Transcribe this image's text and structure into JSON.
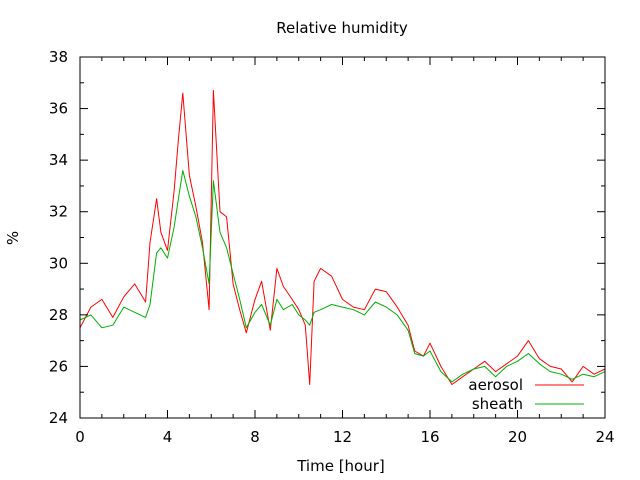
{
  "chart_data": {
    "type": "line",
    "title": "Relative humidity",
    "xlabel": "Time [hour]",
    "ylabel": "%",
    "xlim": [
      0,
      24
    ],
    "ylim": [
      24,
      38
    ],
    "x_ticks": [
      0,
      4,
      8,
      12,
      16,
      20,
      24
    ],
    "y_ticks": [
      24,
      26,
      28,
      30,
      32,
      34,
      36,
      38
    ],
    "grid": false,
    "legend_position": "bottom-right",
    "series": [
      {
        "name": "aerosol",
        "color": "#ff0000",
        "x": [
          0,
          0.5,
          1,
          1.5,
          2,
          2.5,
          3,
          3.2,
          3.5,
          3.7,
          4,
          4.3,
          4.5,
          4.7,
          5,
          5.3,
          5.6,
          5.9,
          6.1,
          6.4,
          6.7,
          7,
          7.3,
          7.6,
          8,
          8.3,
          8.7,
          9,
          9.3,
          9.7,
          10,
          10.3,
          10.5,
          10.7,
          11,
          11.5,
          12,
          12.5,
          13,
          13.5,
          14,
          14.5,
          15,
          15.3,
          15.7,
          16,
          16.5,
          17,
          17.5,
          18,
          18.5,
          19,
          19.5,
          20,
          20.5,
          21,
          21.5,
          22,
          22.5,
          23,
          23.5,
          24
        ],
        "y": [
          27.5,
          28.3,
          28.6,
          27.9,
          28.7,
          29.2,
          28.5,
          30.8,
          32.5,
          31.2,
          30.5,
          32.8,
          34.8,
          36.6,
          33.4,
          32.2,
          30.8,
          28.2,
          36.7,
          32.0,
          31.8,
          29.2,
          28.2,
          27.3,
          28.6,
          29.3,
          27.4,
          29.8,
          29.1,
          28.6,
          28.2,
          27.6,
          25.3,
          29.3,
          29.8,
          29.5,
          28.6,
          28.3,
          28.2,
          29.0,
          28.9,
          28.3,
          27.6,
          26.6,
          26.4,
          26.9,
          26.0,
          25.3,
          25.6,
          25.9,
          26.2,
          25.8,
          26.1,
          26.4,
          27.0,
          26.3,
          26.0,
          25.9,
          25.4,
          26.0,
          25.7,
          25.9
        ]
      },
      {
        "name": "sheath",
        "color": "#00b000",
        "x": [
          0,
          0.5,
          1,
          1.5,
          2,
          2.5,
          3,
          3.2,
          3.5,
          3.7,
          4,
          4.3,
          4.5,
          4.7,
          5,
          5.3,
          5.6,
          5.9,
          6.1,
          6.4,
          6.7,
          7,
          7.3,
          7.6,
          8,
          8.3,
          8.7,
          9,
          9.3,
          9.7,
          10,
          10.3,
          10.5,
          10.7,
          11,
          11.5,
          12,
          12.5,
          13,
          13.5,
          14,
          14.5,
          15,
          15.3,
          15.7,
          16,
          16.5,
          17,
          17.5,
          18,
          18.5,
          19,
          19.5,
          20,
          20.5,
          21,
          21.5,
          22,
          22.5,
          23,
          23.5,
          24
        ],
        "y": [
          27.8,
          28.0,
          27.5,
          27.6,
          28.3,
          28.1,
          27.9,
          28.4,
          30.4,
          30.6,
          30.2,
          31.4,
          32.5,
          33.6,
          32.6,
          31.8,
          30.6,
          29.2,
          33.2,
          31.2,
          30.6,
          29.6,
          28.6,
          27.5,
          28.1,
          28.4,
          27.6,
          28.6,
          28.2,
          28.4,
          28.0,
          27.8,
          27.6,
          28.1,
          28.2,
          28.4,
          28.3,
          28.2,
          28.0,
          28.5,
          28.3,
          28.0,
          27.4,
          26.5,
          26.4,
          26.6,
          25.8,
          25.4,
          25.7,
          25.9,
          26.0,
          25.6,
          26.0,
          26.2,
          26.5,
          26.1,
          25.8,
          25.7,
          25.5,
          25.7,
          25.6,
          25.8
        ]
      }
    ]
  }
}
